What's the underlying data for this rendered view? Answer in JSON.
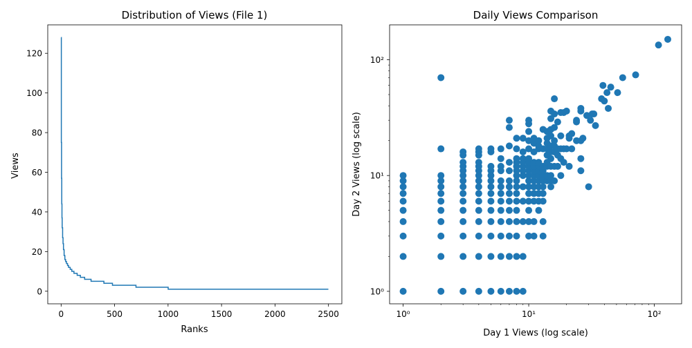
{
  "chart_data": [
    {
      "type": "line",
      "title": "Distribution of Views (File 1)",
      "xlabel": "Ranks",
      "ylabel": "Views",
      "xlim": [
        -125,
        2625
      ],
      "ylim": [
        -6.35,
        134.35
      ],
      "xticks": [
        0,
        500,
        1000,
        1500,
        2000,
        2500
      ],
      "xtick_labels": [
        "0",
        "500",
        "1000",
        "1500",
        "2000",
        "2500"
      ],
      "yticks": [
        0,
        20,
        40,
        60,
        80,
        100,
        120
      ],
      "ytick_labels": [
        "0",
        "20",
        "40",
        "60",
        "80",
        "100",
        "120"
      ],
      "color": "#1f77b4",
      "series": [
        {
          "name": "views",
          "x": [
            0,
            2,
            4,
            6,
            8,
            10,
            14,
            18,
            22,
            28,
            35,
            42,
            50,
            60,
            70,
            85,
            100,
            120,
            150,
            180,
            220,
            280,
            330,
            400,
            480,
            570,
            700,
            1000,
            1001,
            2499
          ],
          "y": [
            128,
            75,
            57,
            44,
            37,
            32,
            27,
            24,
            21,
            18,
            16,
            15,
            14,
            13,
            12,
            11,
            10,
            9,
            8,
            7,
            6,
            5,
            5,
            4,
            3,
            3,
            2,
            2,
            1,
            1
          ]
        }
      ]
    },
    {
      "type": "scatter",
      "title": "Daily Views Comparison",
      "xlabel": "Day 1 Views (log scale)",
      "ylabel": "Day 2 Views (log scale)",
      "xscale": "log",
      "yscale": "log",
      "xlim": [
        0.78,
        165
      ],
      "ylim": [
        0.78,
        200
      ],
      "xtick_labels": [
        "10⁰",
        "10¹",
        "10²"
      ],
      "ytick_labels": [
        "10⁰",
        "10¹",
        "10²"
      ],
      "color": "#1f77b4",
      "points": [
        [
          1,
          1
        ],
        [
          1,
          2
        ],
        [
          1,
          3
        ],
        [
          1,
          4
        ],
        [
          1,
          5
        ],
        [
          1,
          6
        ],
        [
          1,
          7
        ],
        [
          1,
          8
        ],
        [
          1,
          9
        ],
        [
          1,
          10
        ],
        [
          2,
          1
        ],
        [
          2,
          2
        ],
        [
          2,
          3
        ],
        [
          2,
          4
        ],
        [
          2,
          5
        ],
        [
          2,
          6
        ],
        [
          2,
          7
        ],
        [
          2,
          8
        ],
        [
          2,
          9
        ],
        [
          2,
          10
        ],
        [
          2,
          17
        ],
        [
          2,
          70
        ],
        [
          3,
          1
        ],
        [
          3,
          2
        ],
        [
          3,
          3
        ],
        [
          3,
          4
        ],
        [
          3,
          5
        ],
        [
          3,
          6
        ],
        [
          3,
          7
        ],
        [
          3,
          8
        ],
        [
          3,
          9
        ],
        [
          3,
          10
        ],
        [
          3,
          11
        ],
        [
          3,
          12
        ],
        [
          3,
          13
        ],
        [
          3,
          15
        ],
        [
          3,
          16
        ],
        [
          4,
          1
        ],
        [
          4,
          2
        ],
        [
          4,
          3
        ],
        [
          4,
          4
        ],
        [
          4,
          5
        ],
        [
          4,
          6
        ],
        [
          4,
          7
        ],
        [
          4,
          8
        ],
        [
          4,
          9
        ],
        [
          4,
          10
        ],
        [
          4,
          11
        ],
        [
          4,
          12
        ],
        [
          4,
          13
        ],
        [
          4,
          15
        ],
        [
          4,
          16
        ],
        [
          4,
          17
        ],
        [
          5,
          1
        ],
        [
          5,
          2
        ],
        [
          5,
          3
        ],
        [
          5,
          4
        ],
        [
          5,
          5
        ],
        [
          5,
          6
        ],
        [
          5,
          7
        ],
        [
          5,
          8
        ],
        [
          5,
          9
        ],
        [
          5,
          10
        ],
        [
          5,
          11
        ],
        [
          5,
          12
        ],
        [
          5,
          16
        ],
        [
          5,
          17
        ],
        [
          6,
          1
        ],
        [
          6,
          2
        ],
        [
          6,
          3
        ],
        [
          6,
          4
        ],
        [
          6,
          5
        ],
        [
          6,
          6
        ],
        [
          6,
          7
        ],
        [
          6,
          8
        ],
        [
          6,
          9
        ],
        [
          6,
          11
        ],
        [
          6,
          12
        ],
        [
          6,
          14
        ],
        [
          6,
          17
        ],
        [
          7,
          1
        ],
        [
          7,
          2
        ],
        [
          7,
          3
        ],
        [
          7,
          4
        ],
        [
          7,
          5
        ],
        [
          7,
          6
        ],
        [
          7,
          7
        ],
        [
          7,
          8
        ],
        [
          7,
          9
        ],
        [
          7,
          11
        ],
        [
          7,
          13
        ],
        [
          7,
          18
        ],
        [
          7,
          26
        ],
        [
          7,
          30
        ],
        [
          8,
          1
        ],
        [
          8,
          2
        ],
        [
          8,
          3
        ],
        [
          8,
          4
        ],
        [
          8,
          5
        ],
        [
          8,
          6
        ],
        [
          8,
          7
        ],
        [
          8,
          8
        ],
        [
          8,
          9
        ],
        [
          8,
          10
        ],
        [
          8,
          11
        ],
        [
          8,
          12
        ],
        [
          8,
          13
        ],
        [
          8,
          14
        ],
        [
          8,
          17
        ],
        [
          8,
          21
        ],
        [
          9,
          1
        ],
        [
          9,
          2
        ],
        [
          9,
          4
        ],
        [
          9,
          6
        ],
        [
          9,
          8
        ],
        [
          9,
          10
        ],
        [
          9,
          11
        ],
        [
          9,
          12
        ],
        [
          9,
          13
        ],
        [
          9,
          14
        ],
        [
          9,
          16
        ],
        [
          9,
          21
        ],
        [
          10,
          3
        ],
        [
          10,
          4
        ],
        [
          10,
          5
        ],
        [
          10,
          6
        ],
        [
          10,
          7
        ],
        [
          10,
          8
        ],
        [
          10,
          9
        ],
        [
          10,
          10
        ],
        [
          10,
          11
        ],
        [
          10,
          12
        ],
        [
          10,
          13
        ],
        [
          10,
          14
        ],
        [
          10,
          17
        ],
        [
          10,
          20
        ],
        [
          10,
          24
        ],
        [
          10,
          28
        ],
        [
          10,
          30
        ],
        [
          11,
          3
        ],
        [
          11,
          4
        ],
        [
          11,
          6
        ],
        [
          11,
          7
        ],
        [
          11,
          8
        ],
        [
          11,
          9
        ],
        [
          11,
          10
        ],
        [
          11,
          11
        ],
        [
          11,
          12
        ],
        [
          11,
          13
        ],
        [
          11,
          16
        ],
        [
          11,
          19
        ],
        [
          11,
          21
        ],
        [
          12,
          5
        ],
        [
          12,
          6
        ],
        [
          12,
          7
        ],
        [
          12,
          8
        ],
        [
          12,
          9
        ],
        [
          12,
          10
        ],
        [
          12,
          11
        ],
        [
          12,
          12
        ],
        [
          12,
          13
        ],
        [
          12,
          17
        ],
        [
          12,
          18
        ],
        [
          12,
          20
        ],
        [
          13,
          3
        ],
        [
          13,
          4
        ],
        [
          13,
          6
        ],
        [
          13,
          7
        ],
        [
          13,
          8
        ],
        [
          13,
          9
        ],
        [
          13,
          10
        ],
        [
          13,
          11
        ],
        [
          13,
          12
        ],
        [
          13,
          17
        ],
        [
          13,
          25
        ],
        [
          14,
          9
        ],
        [
          14,
          10
        ],
        [
          14,
          12
        ],
        [
          14,
          13
        ],
        [
          14,
          15
        ],
        [
          14,
          17
        ],
        [
          14,
          19
        ],
        [
          14,
          21
        ],
        [
          14,
          24
        ],
        [
          15,
          8
        ],
        [
          15,
          9
        ],
        [
          15,
          10
        ],
        [
          15,
          12
        ],
        [
          15,
          14
        ],
        [
          15,
          16
        ],
        [
          15,
          18
        ],
        [
          15,
          22
        ],
        [
          15,
          25
        ],
        [
          15,
          31
        ],
        [
          15,
          36
        ],
        [
          16,
          9
        ],
        [
          16,
          12
        ],
        [
          16,
          16
        ],
        [
          16,
          18
        ],
        [
          16,
          20
        ],
        [
          16,
          26
        ],
        [
          16,
          34
        ],
        [
          16,
          46
        ],
        [
          17,
          12
        ],
        [
          17,
          15
        ],
        [
          17,
          17
        ],
        [
          17,
          29
        ],
        [
          18,
          10
        ],
        [
          18,
          14
        ],
        [
          18,
          17
        ],
        [
          18,
          22
        ],
        [
          18,
          35
        ],
        [
          19,
          13
        ],
        [
          19,
          17
        ],
        [
          19,
          35
        ],
        [
          20,
          17
        ],
        [
          20,
          36
        ],
        [
          21,
          12
        ],
        [
          21,
          21
        ],
        [
          21,
          22
        ],
        [
          22,
          17
        ],
        [
          22,
          23
        ],
        [
          24,
          20
        ],
        [
          24,
          29
        ],
        [
          24,
          30
        ],
        [
          26,
          11
        ],
        [
          26,
          14
        ],
        [
          26,
          20
        ],
        [
          26,
          36
        ],
        [
          26,
          38
        ],
        [
          27,
          21
        ],
        [
          29,
          33
        ],
        [
          30,
          8
        ],
        [
          31,
          30
        ],
        [
          32,
          34
        ],
        [
          33,
          34
        ],
        [
          34,
          27
        ],
        [
          38,
          46
        ],
        [
          39,
          60
        ],
        [
          40,
          44
        ],
        [
          42,
          52
        ],
        [
          43,
          38
        ],
        [
          45,
          58
        ],
        [
          51,
          52
        ],
        [
          56,
          70
        ],
        [
          71,
          74
        ],
        [
          108,
          134
        ],
        [
          128,
          150
        ]
      ]
    }
  ]
}
